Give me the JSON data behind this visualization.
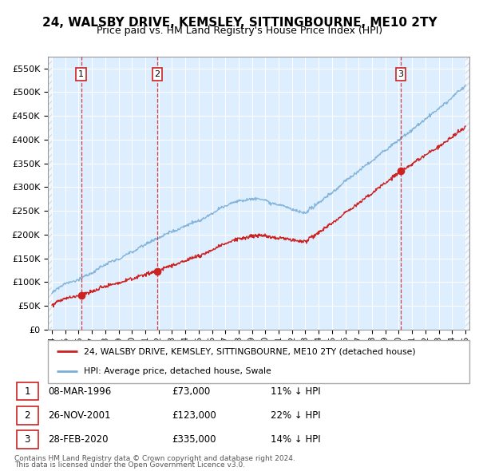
{
  "title": "24, WALSBY DRIVE, KEMSLEY, SITTINGBOURNE, ME10 2TY",
  "subtitle": "Price paid vs. HM Land Registry's House Price Index (HPI)",
  "ylim": [
    0,
    575000
  ],
  "yticks": [
    0,
    50000,
    100000,
    150000,
    200000,
    250000,
    300000,
    350000,
    400000,
    450000,
    500000,
    550000
  ],
  "ytick_labels": [
    "£0",
    "£50K",
    "£100K",
    "£150K",
    "£200K",
    "£250K",
    "£300K",
    "£350K",
    "£400K",
    "£450K",
    "£500K",
    "£550K"
  ],
  "xlim_min": 1993.7,
  "xlim_max": 2025.3,
  "transactions": [
    {
      "date_num": 1996.19,
      "price": 73000,
      "label": "1",
      "date_str": "08-MAR-1996",
      "price_str": "£73,000",
      "pct": "11% ↓ HPI"
    },
    {
      "date_num": 2001.9,
      "price": 123000,
      "label": "2",
      "date_str": "26-NOV-2001",
      "price_str": "£123,000",
      "pct": "22% ↓ HPI"
    },
    {
      "date_num": 2020.16,
      "price": 335000,
      "label": "3",
      "date_str": "28-FEB-2020",
      "price_str": "£335,000",
      "pct": "14% ↓ HPI"
    }
  ],
  "legend_line1": "24, WALSBY DRIVE, KEMSLEY, SITTINGBOURNE, ME10 2TY (detached house)",
  "legend_line2": "HPI: Average price, detached house, Swale",
  "footer1": "Contains HM Land Registry data © Crown copyright and database right 2024.",
  "footer2": "This data is licensed under the Open Government Licence v3.0.",
  "red_color": "#cc2222",
  "blue_color": "#7aaed6",
  "bg_plot": "#ddeeff",
  "grid_color": "#ffffff",
  "title_fontsize": 11,
  "subtitle_fontsize": 9
}
